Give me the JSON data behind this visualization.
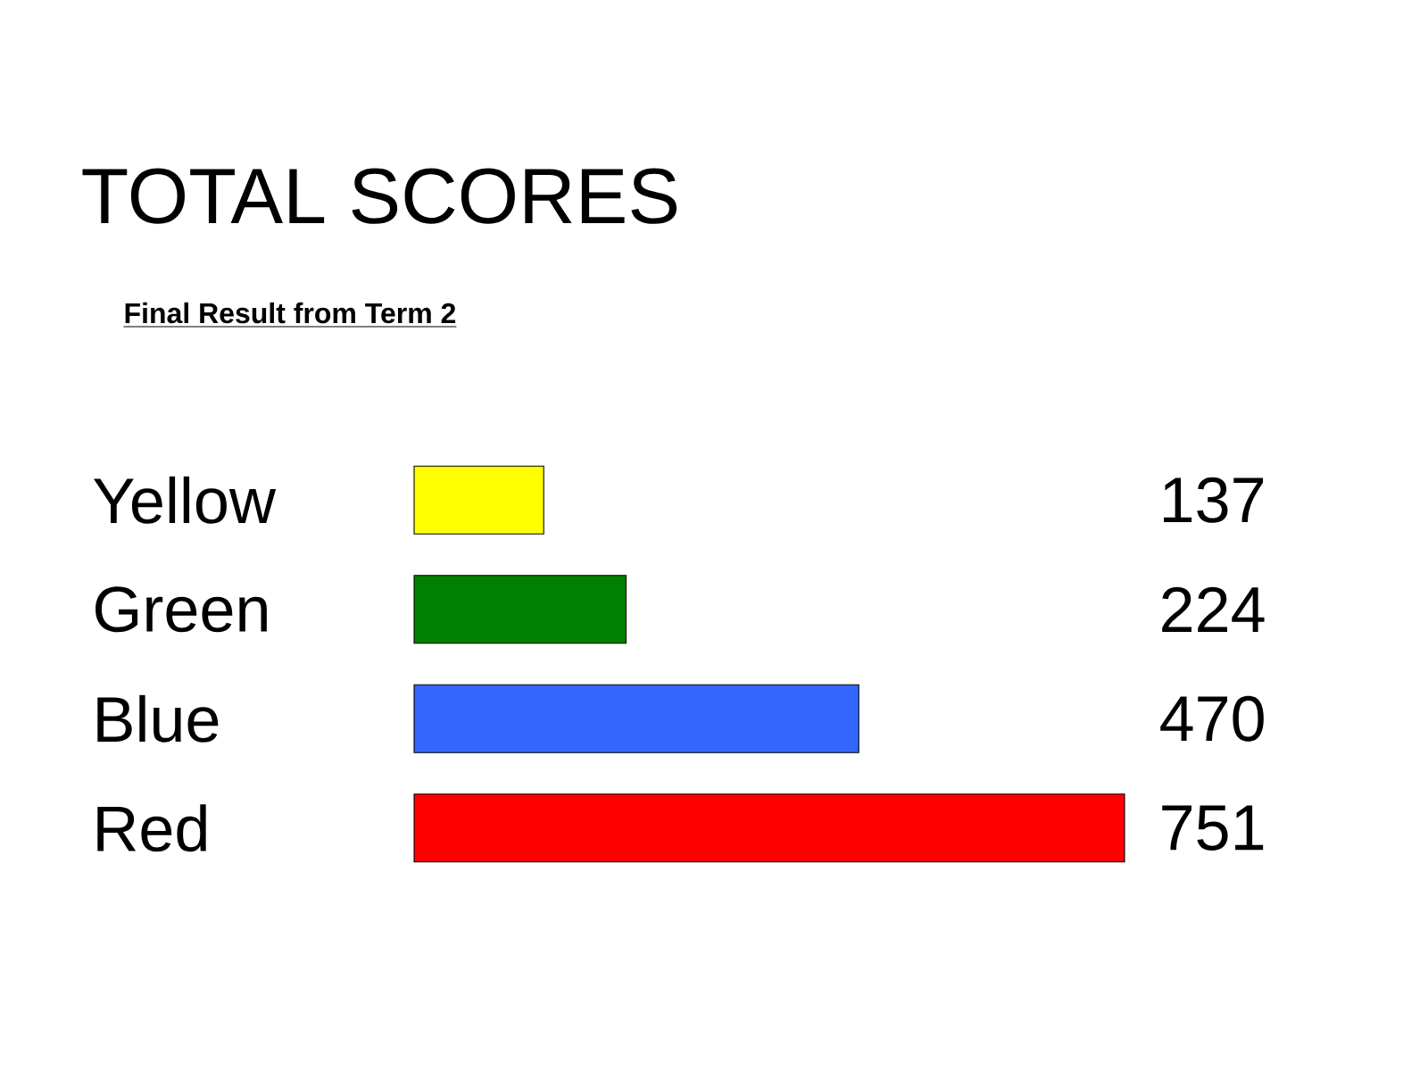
{
  "chart_data": {
    "type": "bar",
    "orientation": "horizontal",
    "title": "TOTAL SCORES",
    "subtitle": "Final Result from Term 2",
    "categories": [
      "Yellow",
      "Green",
      "Blue",
      "Red"
    ],
    "values": [
      137,
      224,
      470,
      751
    ],
    "colors": [
      "#ffff00",
      "#008000",
      "#3366ff",
      "#ff0000"
    ],
    "data_labels": true,
    "tick_labels": "y",
    "grid": false
  }
}
